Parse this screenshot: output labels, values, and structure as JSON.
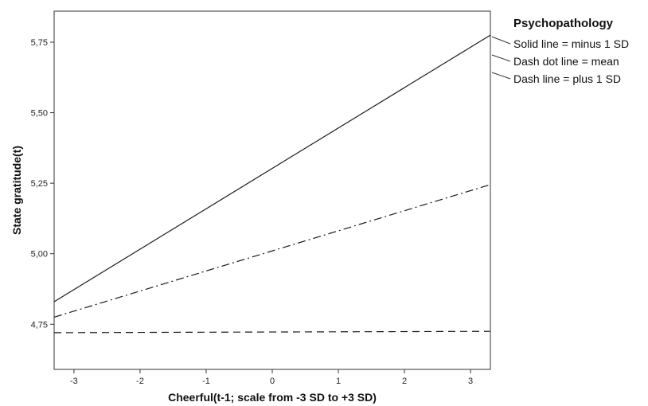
{
  "chart_data": {
    "type": "line",
    "title": "",
    "xlabel": "Cheerful(t-1; scale from -3 SD to +3 SD)",
    "ylabel": "State gratitude(t)",
    "xlim": [
      -3.3,
      3.3
    ],
    "ylim": [
      4.59,
      5.86
    ],
    "x_ticks": [
      -3,
      -2,
      -1,
      0,
      1,
      2,
      3
    ],
    "x_tick_labels": [
      "-3",
      "-2",
      "-1",
      "0",
      "1",
      "2",
      "3"
    ],
    "y_ticks": [
      4.75,
      5.0,
      5.25,
      5.5,
      5.75
    ],
    "y_tick_labels": [
      "4,75",
      "5,00",
      "5,25",
      "5,50",
      "5,75"
    ],
    "grid": false,
    "legend": {
      "title": "Psychopathology",
      "placement": "outside-right-top",
      "entries": [
        "Solid line = minus 1 SD",
        "Dash dot line = mean",
        "Dash line = plus 1 SD"
      ]
    },
    "series": [
      {
        "name": "Solid line = minus 1 SD",
        "style": "solid",
        "x": [
          -3.3,
          3.3
        ],
        "y": [
          4.83,
          5.775
        ],
        "color": "#1a1a1a"
      },
      {
        "name": "Dash dot line = mean",
        "style": "dashdot",
        "x": [
          -3.3,
          3.3
        ],
        "y": [
          4.775,
          5.245
        ],
        "color": "#1a1a1a"
      },
      {
        "name": "Dash line = plus 1 SD",
        "style": "dash",
        "x": [
          -3.3,
          3.3
        ],
        "y": [
          4.72,
          4.725
        ],
        "color": "#1a1a1a"
      }
    ]
  }
}
